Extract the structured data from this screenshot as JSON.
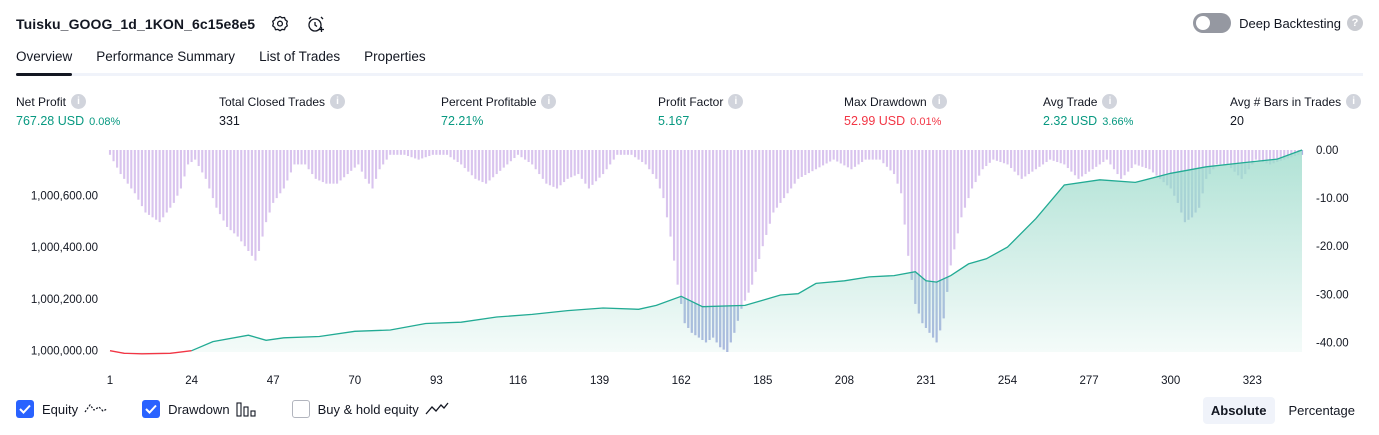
{
  "header": {
    "title": "Tuisku_GOOG_1d_1KON_6c15e8e5",
    "deep_backtesting_label": "Deep Backtesting",
    "help_glyph": "?"
  },
  "tabs": [
    {
      "label": "Overview",
      "active": true
    },
    {
      "label": "Performance Summary"
    },
    {
      "label": "List of Trades"
    },
    {
      "label": "Properties"
    }
  ],
  "metrics": {
    "net_profit": {
      "label": "Net Profit",
      "value": "767.28 USD",
      "sub": "0.08%"
    },
    "total_closed_trades": {
      "label": "Total Closed Trades",
      "value": "331"
    },
    "percent_profitable": {
      "label": "Percent Profitable",
      "value": "72.21%"
    },
    "profit_factor": {
      "label": "Profit Factor",
      "value": "5.167"
    },
    "max_drawdown": {
      "label": "Max Drawdown",
      "value": "52.99 USD",
      "sub": "0.01%"
    },
    "avg_trade": {
      "label": "Avg Trade",
      "value": "2.32 USD",
      "sub": "3.66%"
    },
    "avg_bars": {
      "label": "Avg # Bars in Trades",
      "value": "20"
    }
  },
  "info_glyph": "i",
  "colors": {
    "equity_line": "#22ab94",
    "equity_fill": "#a8dfd1",
    "equity_negative": "#f23645",
    "drawdown_bar": "#d9c4ee",
    "drawdown_overlap": "#a9b4e0",
    "accent": "#2962ff",
    "positive": "#089981",
    "negative": "#f23645"
  },
  "legend": {
    "equity": {
      "label": "Equity",
      "checked": true,
      "icon": "equity-line-icon"
    },
    "drawdown": {
      "label": "Drawdown",
      "checked": true,
      "icon": "drawdown-bars-icon"
    },
    "buy_hold": {
      "label": "Buy & hold equity",
      "checked": false,
      "icon": "buy-hold-line-icon"
    }
  },
  "mode": {
    "absolute": "Absolute",
    "percentage": "Percentage",
    "selected": "Absolute"
  },
  "chart_data": {
    "type": "line",
    "x_ticks": [
      "1",
      "24",
      "47",
      "70",
      "93",
      "116",
      "139",
      "162",
      "185",
      "208",
      "231",
      "254",
      "277",
      "300",
      "323"
    ],
    "x_range": [
      1,
      337
    ],
    "left_axis": {
      "ticks": [
        "1,000,000.00",
        "1,000,200.00",
        "1,000,400.00",
        "1,000,600.00"
      ],
      "range": [
        999995,
        1000775
      ]
    },
    "right_axis": {
      "ticks": [
        "0.00",
        "-10.00",
        "-20.00",
        "-30.00",
        "-40.00"
      ],
      "range": [
        -42,
        0
      ]
    },
    "series": [
      {
        "kind": "equity",
        "x": [
          1,
          5,
          10,
          18,
          24,
          30,
          40,
          45,
          50,
          60,
          70,
          80,
          90,
          100,
          110,
          120,
          130,
          140,
          150,
          155,
          162,
          168,
          180,
          185,
          190,
          195,
          200,
          208,
          215,
          222,
          228,
          231,
          234,
          238,
          243,
          248,
          254,
          262,
          270,
          280,
          290,
          300,
          310,
          320,
          330,
          337
        ],
        "y": [
          1000000,
          999990,
          999988,
          999990,
          1000000,
          1000035,
          1000060,
          1000040,
          1000050,
          1000055,
          1000075,
          1000080,
          1000105,
          1000110,
          1000130,
          1000140,
          1000155,
          1000165,
          1000160,
          1000175,
          1000210,
          1000170,
          1000175,
          1000195,
          1000215,
          1000220,
          1000260,
          1000270,
          1000285,
          1000290,
          1000305,
          1000270,
          1000265,
          1000290,
          1000335,
          1000355,
          1000400,
          1000510,
          1000640,
          1000660,
          1000650,
          1000685,
          1000710,
          1000725,
          1000740,
          1000775
        ]
      },
      {
        "kind": "drawdown",
        "x": [
          1,
          4,
          8,
          11,
          13,
          15,
          17,
          19,
          21,
          23,
          25,
          28,
          31,
          34,
          37,
          39,
          41,
          42,
          43,
          44,
          45,
          47,
          50,
          53,
          56,
          59,
          62,
          65,
          68,
          71,
          73,
          75,
          77,
          80,
          84,
          88,
          92,
          96,
          100,
          104,
          107,
          110,
          113,
          116,
          120,
          124,
          127,
          130,
          133,
          136,
          140,
          144,
          148,
          152,
          155,
          157,
          159,
          161,
          163,
          165,
          167,
          169,
          171,
          173,
          175,
          177,
          179,
          182,
          185,
          188,
          191,
          195,
          200,
          205,
          210,
          214,
          218,
          222,
          224,
          226,
          228,
          230,
          232,
          234,
          236,
          238,
          241,
          244,
          247,
          250,
          254,
          258,
          262,
          266,
          270,
          274,
          278,
          282,
          286,
          290,
          294,
          297,
          300,
          302,
          304,
          306,
          308,
          310,
          313,
          316,
          320,
          324,
          328,
          332,
          336
        ],
        "y": [
          -1,
          -5,
          -9,
          -13,
          -14,
          -15,
          -13,
          -11,
          -8,
          -3,
          -2,
          -6,
          -12,
          -16,
          -18,
          -20,
          -22,
          -23,
          -21,
          -18,
          -15,
          -11,
          -8,
          -3,
          -3,
          -6,
          -7,
          -7,
          -5,
          -3,
          -6,
          -8,
          -4,
          -1,
          -1,
          -2,
          -1,
          -1,
          -3,
          -6,
          -7,
          -5,
          -3,
          -1,
          -3,
          -7,
          -8,
          -6,
          -5,
          -8,
          -5,
          -1,
          -1,
          -3,
          -6,
          -10,
          -18,
          -28,
          -36,
          -38,
          -39,
          -40,
          -39,
          -41,
          -42,
          -38,
          -33,
          -28,
          -20,
          -13,
          -10,
          -6,
          -4,
          -2,
          -4,
          -2,
          -2,
          -5,
          -9,
          -22,
          -32,
          -36,
          -38,
          -40,
          -35,
          -24,
          -14,
          -8,
          -4,
          -2,
          -3,
          -6,
          -4,
          -2,
          -3,
          -6,
          -4,
          -2,
          -6,
          -3,
          -4,
          -6,
          -8,
          -11,
          -15,
          -14,
          -12,
          -6,
          -3,
          -3,
          -6,
          -2,
          -3,
          -2,
          -1
        ]
      }
    ]
  }
}
